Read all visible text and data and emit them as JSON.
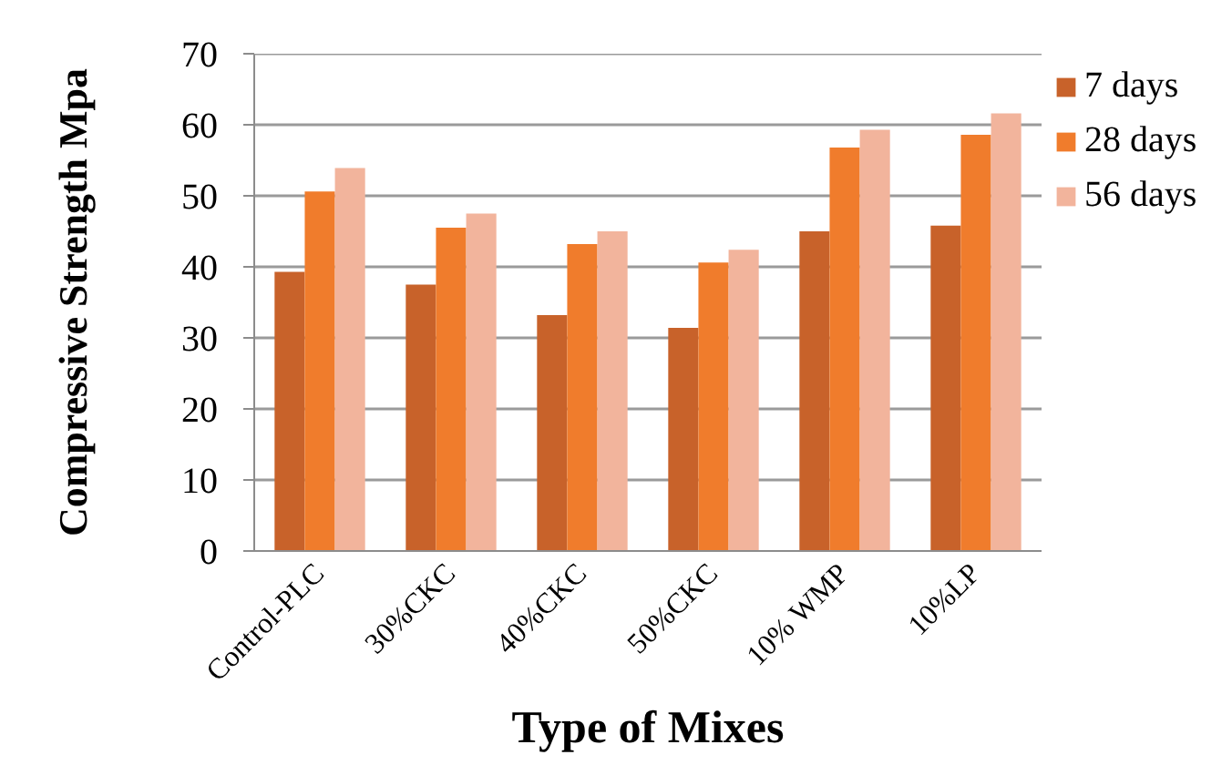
{
  "chart_data": {
    "type": "bar",
    "xlabel": "Type of Mixes",
    "ylabel": "Compressive Strength Mpa",
    "categories": [
      "Control-PLC",
      "30%CKC",
      "40%CKC",
      "50%CKC",
      "10% WMP",
      "10%LP"
    ],
    "series": [
      {
        "name": "7 days",
        "color": "#c8622a",
        "values": [
          39.3,
          37.5,
          33.2,
          31.4,
          45.0,
          45.8
        ]
      },
      {
        "name": "28 days",
        "color": "#f07c2c",
        "values": [
          50.6,
          45.5,
          43.2,
          40.6,
          56.8,
          58.6
        ]
      },
      {
        "name": "56 days",
        "color": "#f2b49c",
        "values": [
          53.9,
          47.5,
          45.0,
          42.4,
          59.3,
          61.6
        ]
      }
    ],
    "ylim": [
      0,
      70
    ],
    "yticks": [
      0,
      10,
      20,
      30,
      40,
      50,
      60,
      70
    ],
    "grid": "y",
    "legend": "top right"
  }
}
